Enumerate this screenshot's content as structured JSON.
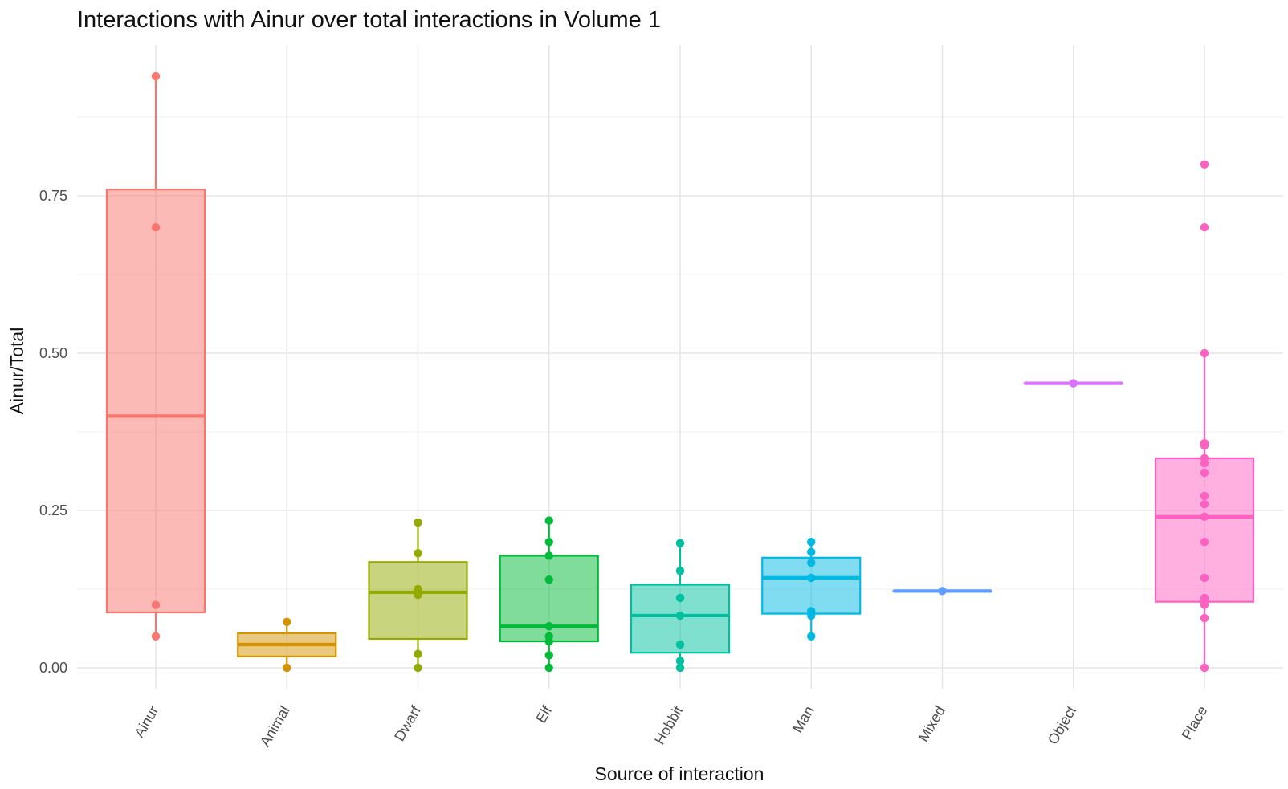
{
  "chart_data": {
    "type": "box",
    "title": "Interactions with Ainur over total interactions in Volume 1",
    "xlabel": "Source of interaction",
    "ylabel": "Ainur/Total",
    "ylim": [
      -0.04,
      1.0
    ],
    "yticks": [
      0.0,
      0.25,
      0.5,
      0.75
    ],
    "ytick_labels": [
      "0.00",
      "0.25",
      "0.50",
      "0.75"
    ],
    "grid": true,
    "legend": "none",
    "x_tick_rotation_deg": -60,
    "categories": [
      "Ainur",
      "Animal",
      "Dwarf",
      "Elf",
      "Hobbit",
      "Man",
      "Mixed",
      "Object",
      "Place"
    ],
    "series": [
      {
        "category": "Ainur",
        "color": "#F8766D",
        "q1": 0.088,
        "median": 0.4,
        "q3": 0.76,
        "whisker_low": 0.05,
        "whisker_high": 0.94,
        "points": [
          0.94,
          0.7,
          0.1,
          0.05
        ]
      },
      {
        "category": "Animal",
        "color": "#D39200",
        "q1": 0.018,
        "median": 0.037,
        "q3": 0.055,
        "whisker_low": 0.0,
        "whisker_high": 0.073,
        "points": [
          0.073,
          0.0
        ]
      },
      {
        "category": "Dwarf",
        "color": "#93AA00",
        "q1": 0.046,
        "median": 0.12,
        "q3": 0.168,
        "whisker_low": 0.0,
        "whisker_high": 0.231,
        "points": [
          0.231,
          0.182,
          0.125,
          0.12,
          0.116,
          0.022,
          0.0
        ]
      },
      {
        "category": "Elf",
        "color": "#00BA38",
        "q1": 0.042,
        "median": 0.066,
        "q3": 0.178,
        "whisker_low": 0.0,
        "whisker_high": 0.234,
        "points": [
          0.234,
          0.2,
          0.178,
          0.14,
          0.066,
          0.05,
          0.042,
          0.02,
          0.0
        ]
      },
      {
        "category": "Hobbit",
        "color": "#00C19F",
        "q1": 0.024,
        "median": 0.083,
        "q3": 0.132,
        "whisker_low": 0.0,
        "whisker_high": 0.198,
        "points": [
          0.198,
          0.154,
          0.111,
          0.083,
          0.037,
          0.011,
          0.0
        ]
      },
      {
        "category": "Man",
        "color": "#00B9E3",
        "q1": 0.086,
        "median": 0.143,
        "q3": 0.175,
        "whisker_low": 0.05,
        "whisker_high": 0.2,
        "points": [
          0.2,
          0.184,
          0.167,
          0.143,
          0.09,
          0.083,
          0.05
        ]
      },
      {
        "category": "Mixed",
        "color": "#619CFF",
        "q1": 0.122,
        "median": 0.122,
        "q3": 0.122,
        "whisker_low": 0.122,
        "whisker_high": 0.122,
        "points": [
          0.122
        ]
      },
      {
        "category": "Object",
        "color": "#DB72FB",
        "q1": 0.452,
        "median": 0.452,
        "q3": 0.452,
        "whisker_low": 0.452,
        "whisker_high": 0.452,
        "points": [
          0.452
        ]
      },
      {
        "category": "Place",
        "color": "#FF61C3",
        "q1": 0.105,
        "median": 0.24,
        "q3": 0.333,
        "whisker_low": 0.0,
        "whisker_high": 0.5,
        "points": [
          0.8,
          0.7,
          0.5,
          0.357,
          0.353,
          0.333,
          0.325,
          0.31,
          0.273,
          0.26,
          0.24,
          0.2,
          0.143,
          0.111,
          0.105,
          0.1,
          0.079,
          0.0
        ]
      }
    ]
  }
}
